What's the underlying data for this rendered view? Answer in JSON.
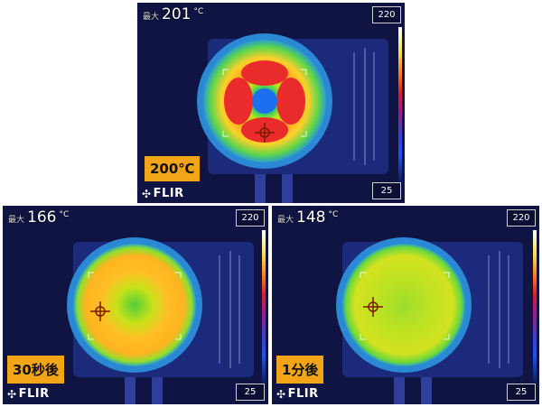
{
  "panels": {
    "top": {
      "max_label": "最大",
      "max_value": "201",
      "unit": "°C",
      "scale_max": "220",
      "scale_min": "25",
      "tag": "200℃"
    },
    "left": {
      "max_label": "最大",
      "max_value": "166",
      "unit": "°C",
      "scale_max": "220",
      "scale_min": "25",
      "tag": "30秒後"
    },
    "right": {
      "max_label": "最大",
      "max_value": "148",
      "unit": "°C",
      "scale_max": "220",
      "scale_min": "25",
      "tag": "1分後"
    }
  },
  "brand": "FLIR",
  "colors": {
    "background": "#0f1442",
    "tag": "#f2a516",
    "crosshair": "#7a1b00"
  },
  "icons": {
    "crosshair": "crosshair-icon",
    "brand": "flir-logo"
  }
}
